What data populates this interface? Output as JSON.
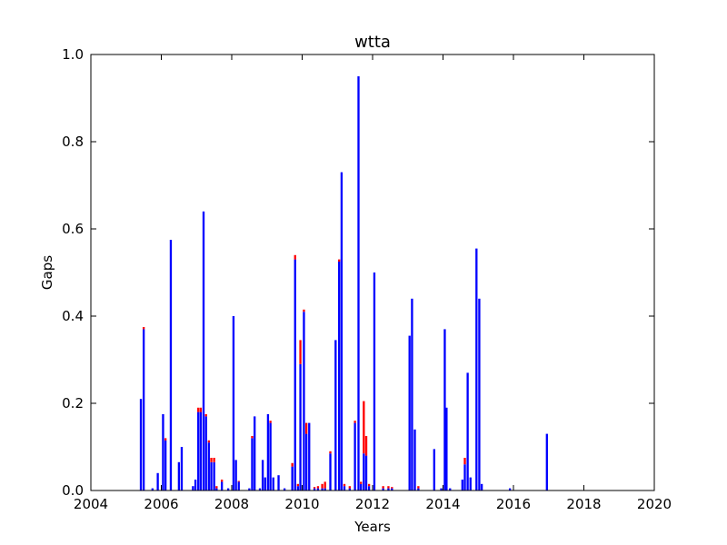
{
  "chart_data": {
    "type": "bar",
    "title": "wtta",
    "xlabel": "Years",
    "ylabel": "Gaps",
    "xlim": [
      2004,
      2020
    ],
    "ylim": [
      0,
      1.0
    ],
    "xticks": [
      2004,
      2006,
      2008,
      2010,
      2012,
      2014,
      2016,
      2018,
      2020
    ],
    "xtick_labels": [
      "2004",
      "2006",
      "2008",
      "2010",
      "2012",
      "2014",
      "2016",
      "2018",
      "2020"
    ],
    "yticks": [
      0,
      0.2,
      0.4,
      0.6,
      0.8,
      1.0
    ],
    "ytick_labels": [
      "0.0",
      "0.2",
      "0.4",
      "0.6",
      "0.8",
      "1.0"
    ],
    "grid": false,
    "legend": "none",
    "bar_width_years": 0.06,
    "stacked": true,
    "series": [
      {
        "color": "#0000ff",
        "x": [
          2005.42,
          2005.5,
          2005.75,
          2005.9,
          2006.05,
          2006.12,
          2006.27,
          2006.5,
          2006.58,
          2006.9,
          2006.97,
          2007.05,
          2007.12,
          2007.2,
          2007.27,
          2007.35,
          2007.42,
          2007.5,
          2007.57,
          2007.72,
          2007.9,
          2008.05,
          2008.12,
          2008.2,
          2008.5,
          2008.58,
          2008.65,
          2008.8,
          2008.88,
          2008.95,
          2009.03,
          2009.1,
          2009.18,
          2009.33,
          2009.5,
          2009.72,
          2009.8,
          2009.88,
          2009.95,
          2010.05,
          2010.12,
          2010.2,
          2010.35,
          2010.45,
          2010.57,
          2010.65,
          2010.8,
          2010.95,
          2011.05,
          2011.12,
          2011.2,
          2011.35,
          2011.5,
          2011.6,
          2011.67,
          2011.75,
          2011.82,
          2011.9,
          2012.05,
          2012.3,
          2012.45,
          2012.55,
          2013.05,
          2013.12,
          2013.2,
          2013.3,
          2013.75,
          2013.95,
          2014.05,
          2014.1,
          2014.2,
          2014.55,
          2014.62,
          2014.7,
          2014.78,
          2014.95,
          2015.03,
          2015.1,
          2015.9,
          2016.95
        ],
        "values": [
          0.21,
          0.37,
          0.005,
          0.04,
          0.175,
          0.115,
          0.575,
          0.065,
          0.1,
          0.01,
          0.025,
          0.18,
          0.18,
          0.64,
          0.17,
          0.11,
          0.065,
          0.065,
          0.005,
          0.02,
          0.005,
          0.4,
          0.07,
          0.02,
          0.005,
          0.12,
          0.17,
          0.005,
          0.07,
          0.03,
          0.175,
          0.155,
          0.03,
          0.035,
          0.005,
          0.055,
          0.53,
          0.01,
          0.29,
          0.41,
          0.13,
          0.155,
          0.005,
          0.005,
          0.005,
          0.005,
          0.085,
          0.345,
          0.525,
          0.73,
          0.01,
          0.005,
          0.155,
          0.95,
          0.015,
          0.085,
          0.08,
          0.01,
          0.5,
          0.005,
          0.005,
          0.005,
          0.355,
          0.44,
          0.14,
          0.005,
          0.095,
          0.005,
          0.37,
          0.19,
          0.005,
          0.025,
          0.06,
          0.27,
          0.03,
          0.555,
          0.44,
          0.015,
          0.005,
          0.13
        ]
      },
      {
        "color": "#ff0000",
        "x": [
          2005.42,
          2005.5,
          2005.75,
          2005.9,
          2006.05,
          2006.12,
          2006.27,
          2006.5,
          2006.58,
          2006.9,
          2006.97,
          2007.05,
          2007.12,
          2007.2,
          2007.27,
          2007.35,
          2007.42,
          2007.5,
          2007.57,
          2007.72,
          2007.9,
          2008.05,
          2008.12,
          2008.2,
          2008.5,
          2008.58,
          2008.65,
          2008.8,
          2008.88,
          2008.95,
          2009.03,
          2009.1,
          2009.18,
          2009.33,
          2009.5,
          2009.72,
          2009.8,
          2009.88,
          2009.95,
          2010.05,
          2010.12,
          2010.2,
          2010.35,
          2010.45,
          2010.57,
          2010.65,
          2010.8,
          2010.95,
          2011.05,
          2011.12,
          2011.2,
          2011.35,
          2011.5,
          2011.6,
          2011.67,
          2011.75,
          2011.82,
          2011.9,
          2012.05,
          2012.3,
          2012.45,
          2012.55,
          2013.05,
          2013.12,
          2013.2,
          2013.3,
          2013.75,
          2013.95,
          2014.05,
          2014.1,
          2014.2,
          2014.55,
          2014.62,
          2014.7,
          2014.78,
          2014.95,
          2015.03,
          2015.1,
          2015.9,
          2016.95
        ],
        "values": [
          0,
          0.005,
          0,
          0,
          0,
          0.005,
          0,
          0,
          0,
          0,
          0,
          0.01,
          0.01,
          0,
          0.005,
          0.005,
          0.01,
          0.01,
          0.005,
          0.005,
          0,
          0,
          0,
          0.002,
          0,
          0.005,
          0,
          0,
          0,
          0,
          0,
          0.005,
          0,
          0,
          0,
          0.008,
          0.01,
          0.005,
          0.055,
          0.005,
          0.025,
          0,
          0.003,
          0.005,
          0.01,
          0.015,
          0.005,
          0,
          0.005,
          0,
          0.005,
          0.005,
          0.005,
          0,
          0.005,
          0.12,
          0.045,
          0.005,
          0,
          0.005,
          0.005,
          0.003,
          0,
          0,
          0,
          0.005,
          0,
          0,
          0,
          0,
          0,
          0,
          0.015,
          0,
          0,
          0,
          0,
          0,
          0,
          0
        ]
      }
    ]
  }
}
